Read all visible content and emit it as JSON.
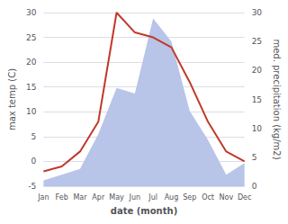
{
  "chart_data": {
    "type": "line",
    "categories": [
      "Jan",
      "Feb",
      "Mar",
      "Apr",
      "May",
      "Jun",
      "Jul",
      "Aug",
      "Sep",
      "Oct",
      "Nov",
      "Dec"
    ],
    "series": [
      {
        "type": "area",
        "color": "#b8c4e8",
        "axis": "y2",
        "values": [
          1,
          2,
          3,
          9,
          17,
          16,
          29,
          25,
          13,
          8,
          2,
          4
        ]
      },
      {
        "type": "line",
        "color": "#c0392b",
        "values": [
          -2,
          -1,
          2,
          8,
          30,
          26,
          25,
          23,
          16,
          8,
          2,
          0
        ]
      }
    ],
    "xlabel": "date (month)",
    "ylabel": "max temp (C)",
    "y2label": "med. precipitation (kg/m2)",
    "ylim": [
      -5,
      30
    ],
    "yticks": [
      -5,
      0,
      5,
      10,
      15,
      20,
      25,
      30
    ],
    "y2lim": [
      0,
      30
    ],
    "y2ticks": [
      0,
      5,
      10,
      15,
      20,
      25,
      30
    ],
    "grid": true
  }
}
